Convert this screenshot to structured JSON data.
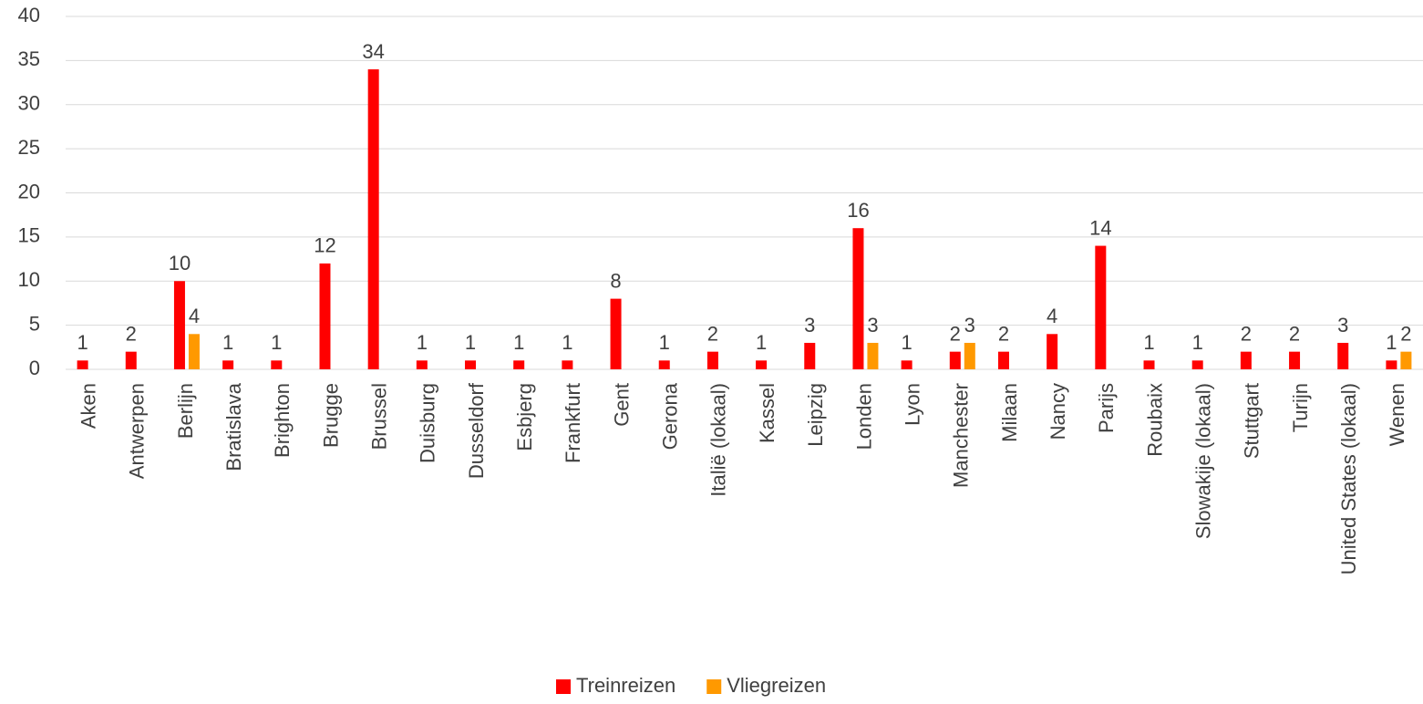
{
  "chart_data": {
    "type": "bar",
    "categories": [
      "Aken",
      "Antwerpen",
      "Berlijn",
      "Bratislava",
      "Brighton",
      "Brugge",
      "Brussel",
      "Duisburg",
      "Dusseldorf",
      "Esbjerg",
      "Frankfurt",
      "Gent",
      "Gerona",
      "Italië (lokaal)",
      "Kassel",
      "Leipzig",
      "Londen",
      "Lyon",
      "Manchester",
      "Milaan",
      "Nancy",
      "Parijs",
      "Roubaix",
      "Slowakije (lokaal)",
      "Stuttgart",
      "Turijn",
      "United States (lokaal)",
      "Wenen"
    ],
    "series": [
      {
        "name": "Treinreizen",
        "color": "#ff0000",
        "values": [
          1,
          2,
          10,
          1,
          1,
          12,
          34,
          1,
          1,
          1,
          1,
          8,
          1,
          2,
          1,
          3,
          16,
          1,
          2,
          2,
          4,
          14,
          1,
          1,
          2,
          2,
          3,
          1
        ]
      },
      {
        "name": "Vliegreizen",
        "color": "#ff9900",
        "values": [
          null,
          null,
          4,
          null,
          null,
          null,
          null,
          null,
          null,
          null,
          null,
          null,
          null,
          null,
          null,
          null,
          3,
          null,
          3,
          null,
          null,
          null,
          null,
          null,
          null,
          null,
          null,
          2
        ]
      }
    ],
    "ylim": [
      0,
      40
    ],
    "yticks": [
      0,
      5,
      10,
      15,
      20,
      25,
      30,
      35,
      40
    ],
    "grid": true,
    "legend": "bottom"
  }
}
